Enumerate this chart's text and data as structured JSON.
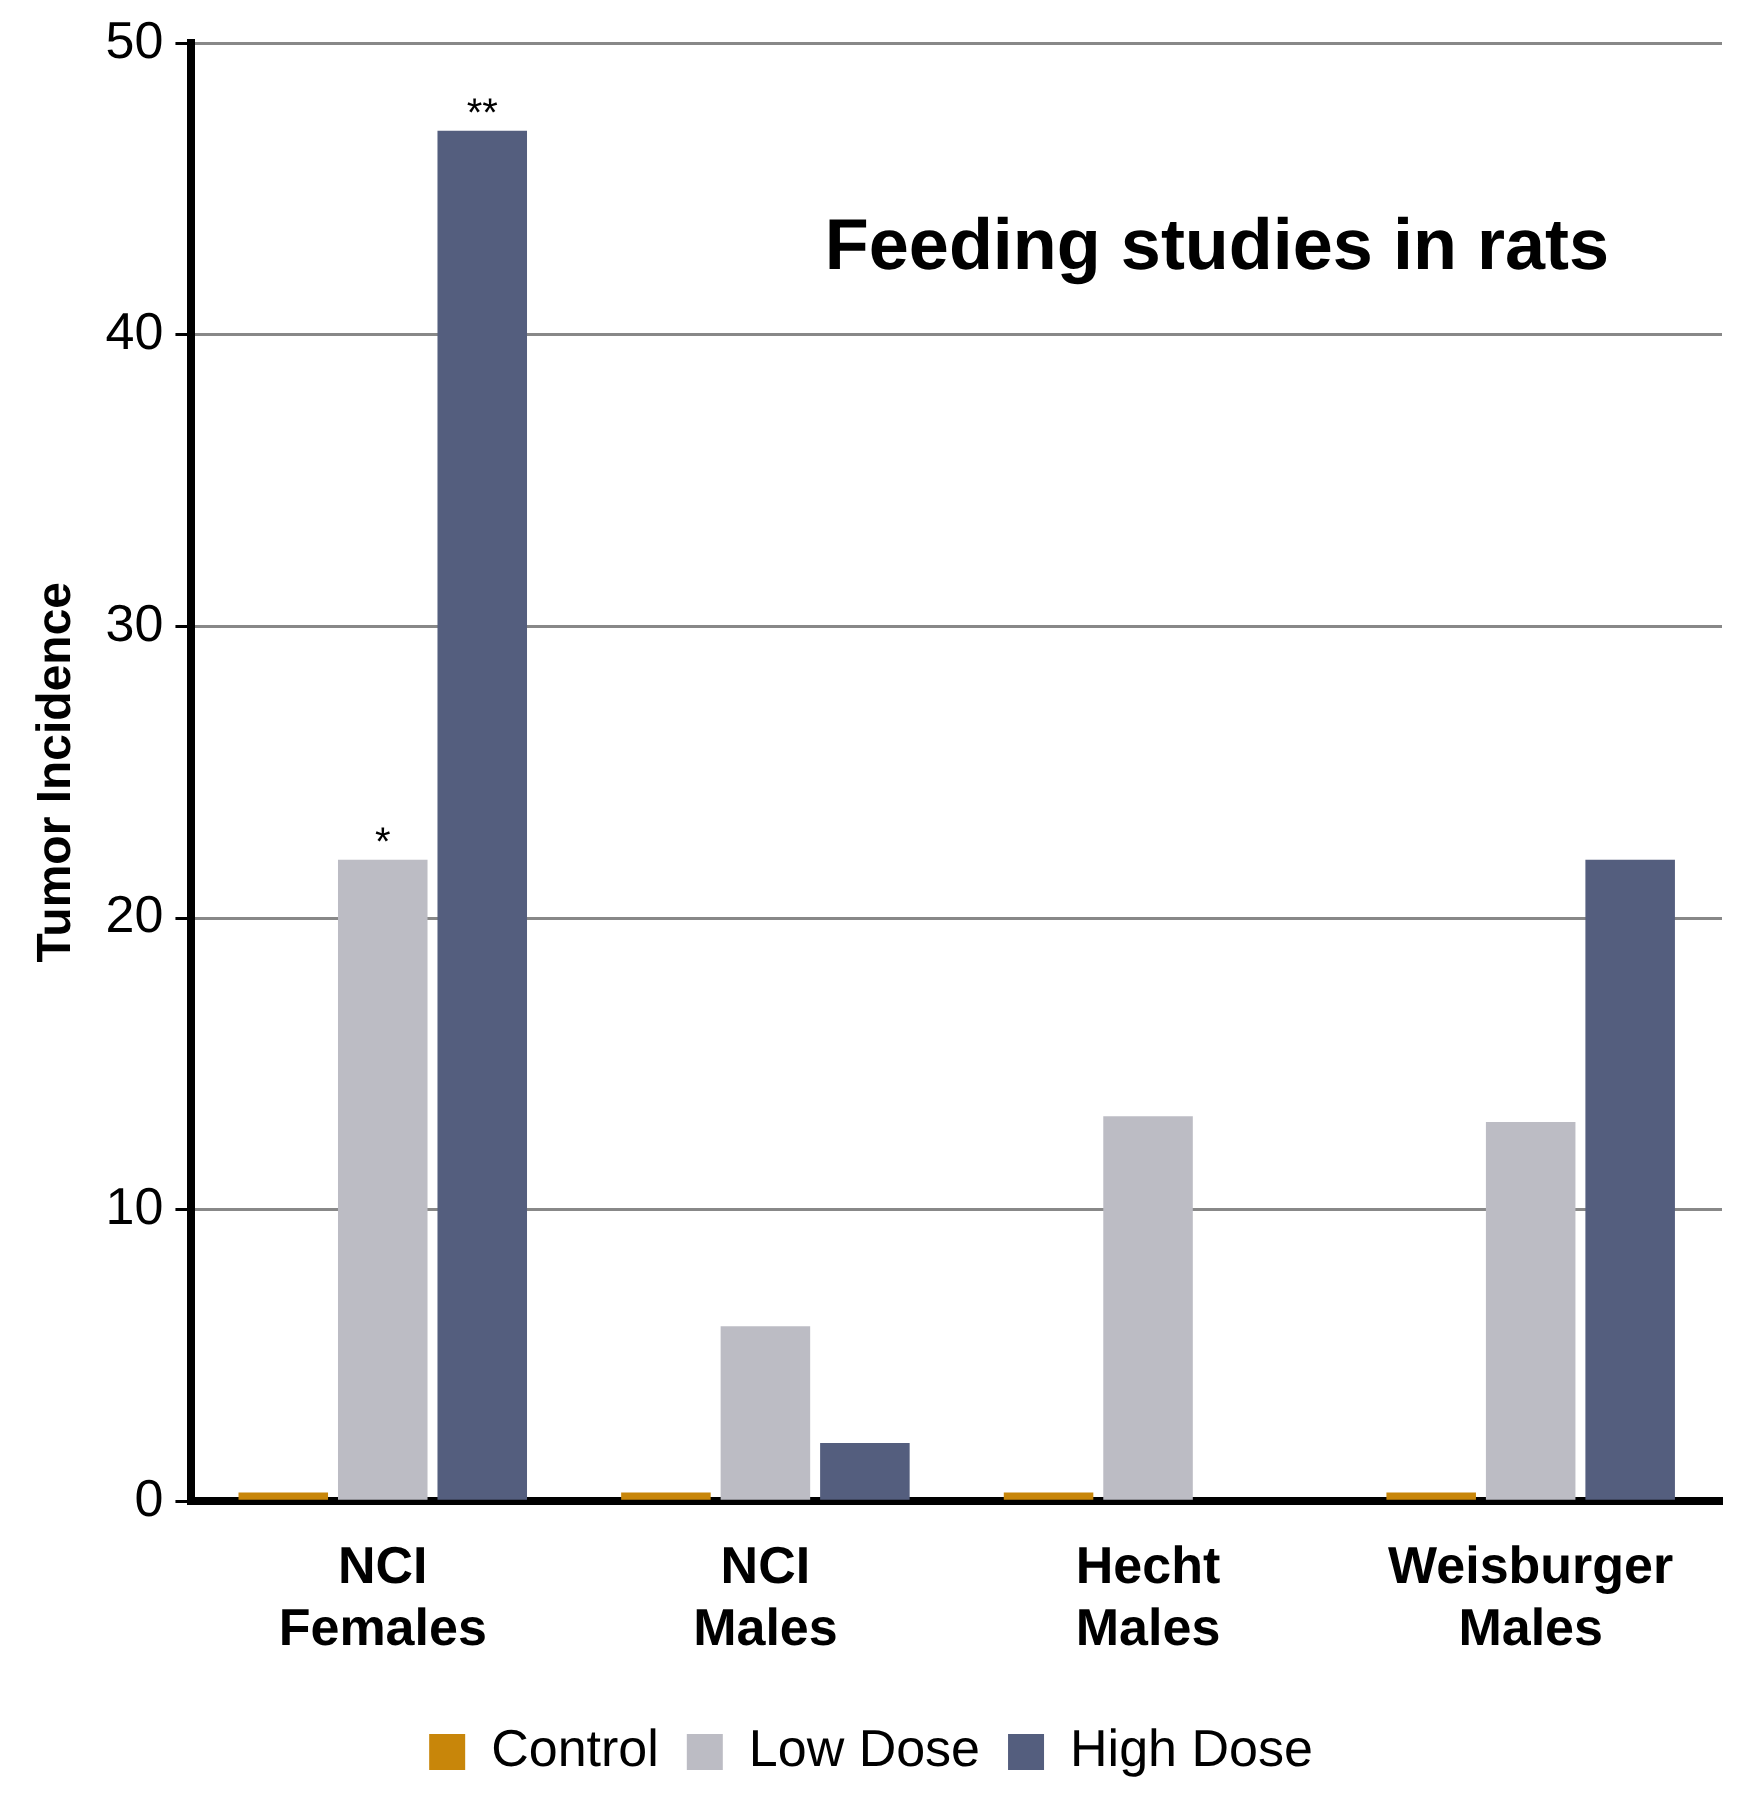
{
  "chart_data": {
    "type": "bar",
    "title": "Feeding studies in rats",
    "ylabel": "Tumor Incidence",
    "categories": [
      "NCI Females",
      "NCI Males",
      "Hecht Males",
      "Weisburger Males"
    ],
    "series": [
      {
        "name": "Control",
        "color": "#c8860a",
        "values": [
          0.3,
          0.3,
          0.3,
          0.3
        ]
      },
      {
        "name": "Low Dose",
        "color": "#bcbcc4",
        "values": [
          22,
          6,
          13.2,
          13
        ]
      },
      {
        "name": "High Dose",
        "color": "#545e7e",
        "values": [
          47,
          2,
          0,
          22
        ]
      }
    ],
    "annotations": [
      "*",
      "**"
    ],
    "ylim": [
      0,
      50
    ],
    "yticks": [
      0,
      10,
      20,
      30,
      40,
      50
    ],
    "grid": "y",
    "legend": "bottom"
  }
}
